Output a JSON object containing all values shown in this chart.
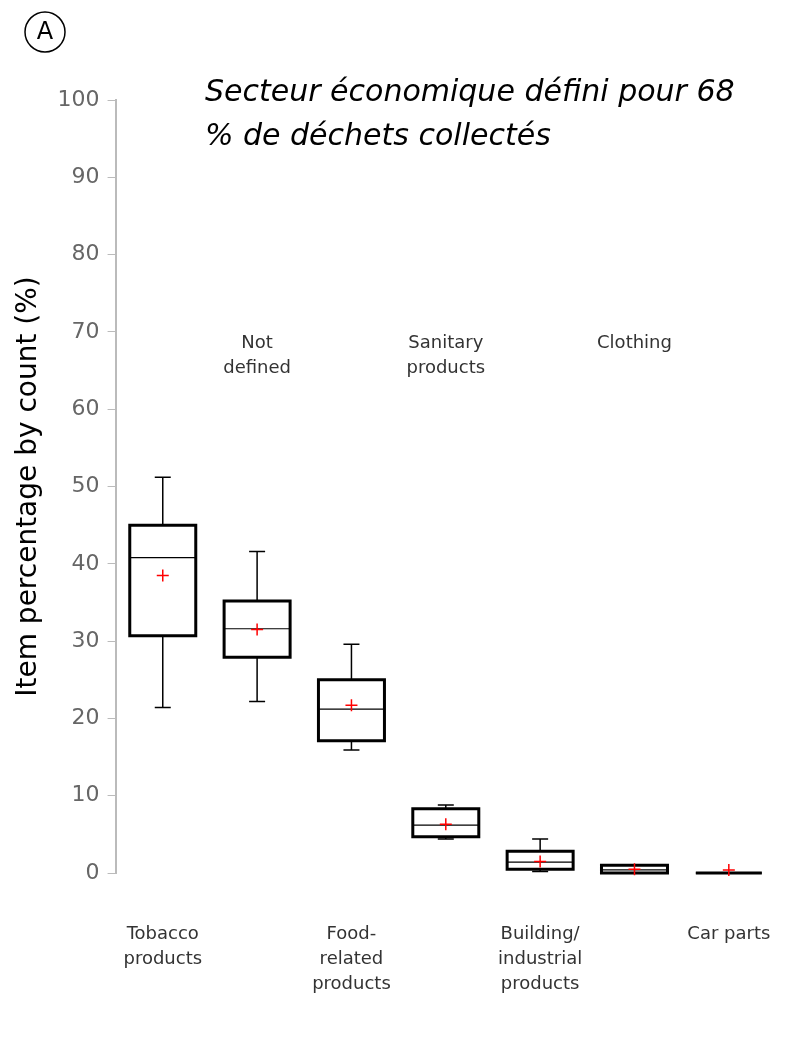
{
  "chart_data": {
    "type": "box",
    "title": "Secteur économique défini pour 68 % de déchets collectés",
    "ylabel": "Item percentage by count (%)",
    "annotations": [
      "A"
    ],
    "categories": [
      "Tobacco products",
      "Not defined",
      "Food-related products",
      "Sanitary products",
      "Building/industrial products",
      "Clothing",
      "Car parts"
    ],
    "boxes": [
      {
        "low": 21.4,
        "q1": 30.7,
        "median": 40.8,
        "q3": 45,
        "high": 51.2,
        "mean": 38.5
      },
      {
        "low": 22.2,
        "q1": 27.9,
        "median": 31.6,
        "q3": 35.2,
        "high": 41.6,
        "mean": 31.5
      },
      {
        "low": 15.9,
        "q1": 17.1,
        "median": 21.2,
        "q3": 25,
        "high": 29.6,
        "mean": 21.7
      },
      {
        "low": 4.4,
        "q1": 4.7,
        "median": 6.2,
        "q3": 8.3,
        "high": 8.8,
        "mean": 6.3
      },
      {
        "low": 0.2,
        "q1": 0.5,
        "median": 1.4,
        "q3": 2.8,
        "high": 4.4,
        "mean": 1.5
      },
      {
        "low": 0,
        "q1": 0,
        "median": 0.4,
        "q3": 1,
        "high": 1,
        "mean": 0.5
      },
      {
        "low": 0,
        "q1": 0,
        "median": 0,
        "q3": 0,
        "high": 0,
        "mean": 0.4
      }
    ],
    "color": "#000000",
    "ylim": [
      0,
      100
    ],
    "yticks": [
      0,
      10,
      20,
      30,
      40,
      50,
      60,
      70,
      80,
      90,
      100
    ],
    "grid": false,
    "legend": false
  }
}
